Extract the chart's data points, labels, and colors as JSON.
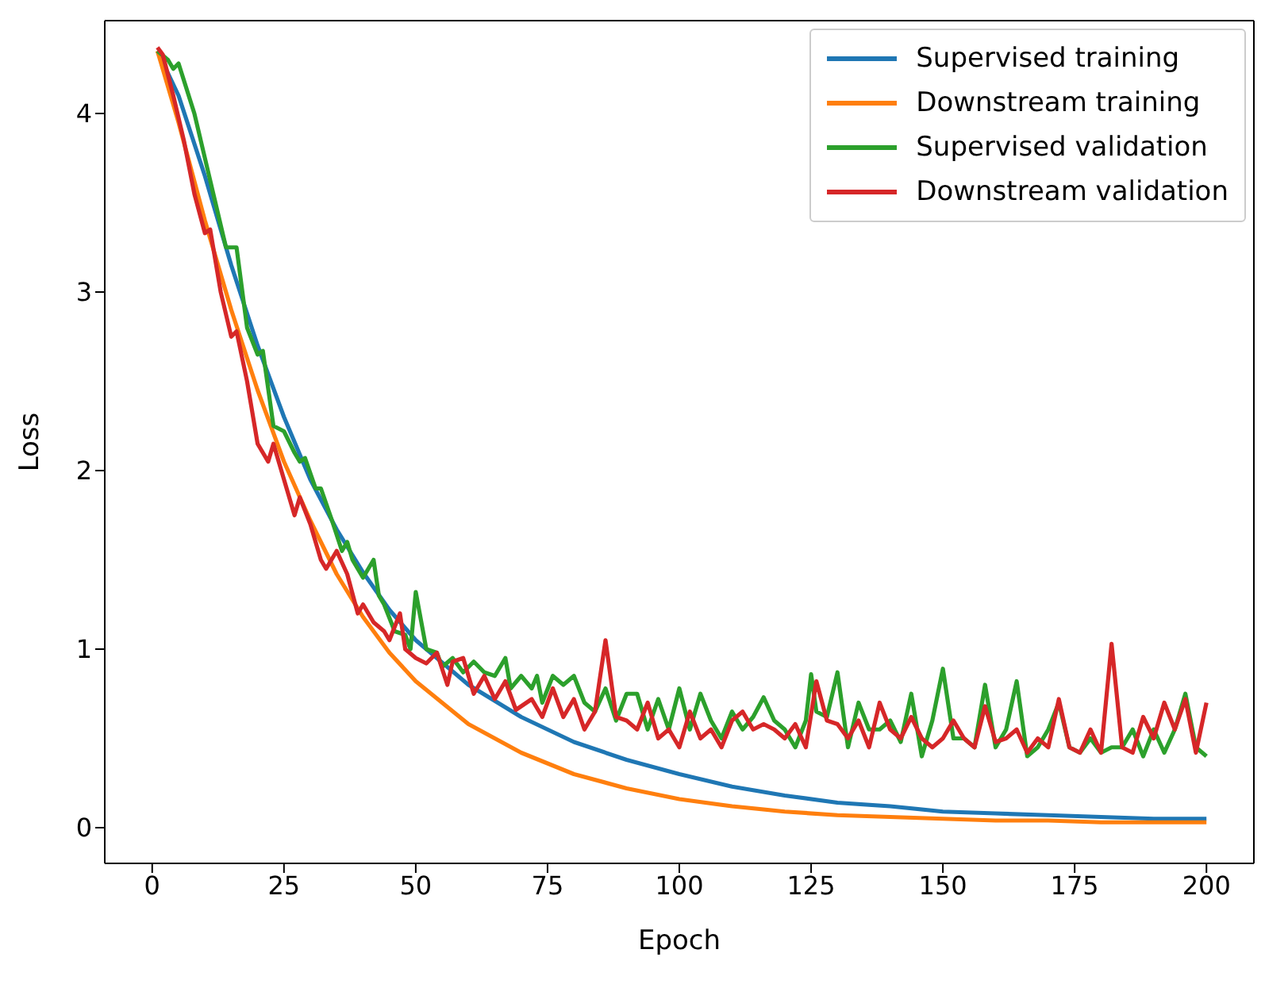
{
  "chart_data": {
    "type": "line",
    "xlabel": "Epoch",
    "ylabel": "Loss",
    "xlim": [
      -9,
      209
    ],
    "ylim": [
      -0.2,
      4.52
    ],
    "xticks": [
      0,
      25,
      50,
      75,
      100,
      125,
      150,
      175,
      200
    ],
    "yticks": [
      0,
      1,
      2,
      3,
      4
    ],
    "grid": false,
    "legend": "top right",
    "line_style": "solid",
    "marker": "none",
    "series": [
      {
        "name": "Supervised training",
        "color": "#1f77b4",
        "x": [
          1,
          5,
          10,
          15,
          20,
          25,
          30,
          35,
          40,
          45,
          50,
          60,
          70,
          80,
          90,
          100,
          110,
          120,
          130,
          140,
          150,
          160,
          170,
          180,
          190,
          200
        ],
        "values": [
          4.35,
          4.1,
          3.65,
          3.15,
          2.7,
          2.3,
          1.95,
          1.67,
          1.43,
          1.22,
          1.05,
          0.8,
          0.62,
          0.48,
          0.38,
          0.3,
          0.23,
          0.18,
          0.14,
          0.12,
          0.09,
          0.08,
          0.07,
          0.06,
          0.05,
          0.05
        ]
      },
      {
        "name": "Downstream training",
        "color": "#ff7f0e",
        "x": [
          1,
          5,
          10,
          15,
          20,
          25,
          30,
          35,
          40,
          45,
          50,
          60,
          70,
          80,
          90,
          100,
          110,
          120,
          130,
          140,
          150,
          160,
          170,
          180,
          190,
          200
        ],
        "values": [
          4.35,
          3.95,
          3.4,
          2.9,
          2.45,
          2.05,
          1.72,
          1.42,
          1.18,
          0.98,
          0.82,
          0.58,
          0.42,
          0.3,
          0.22,
          0.16,
          0.12,
          0.09,
          0.07,
          0.06,
          0.05,
          0.04,
          0.04,
          0.03,
          0.03,
          0.03
        ]
      },
      {
        "name": "Supervised validation",
        "color": "#2ca02c",
        "x": [
          1,
          3,
          4,
          5,
          8,
          10,
          12,
          14,
          16,
          18,
          20,
          21,
          23,
          25,
          27,
          28,
          29,
          31,
          32,
          34,
          36,
          37,
          38,
          40,
          42,
          43,
          44,
          46,
          48,
          49,
          50,
          52,
          54,
          55,
          57,
          59,
          61,
          63,
          65,
          67,
          68,
          70,
          72,
          73,
          74,
          76,
          78,
          80,
          82,
          84,
          86,
          88,
          90,
          92,
          94,
          96,
          98,
          100,
          102,
          104,
          106,
          108,
          110,
          112,
          114,
          116,
          118,
          120,
          122,
          124,
          125,
          126,
          128,
          130,
          132,
          134,
          136,
          138,
          140,
          142,
          144,
          146,
          148,
          150,
          152,
          154,
          156,
          158,
          160,
          162,
          164,
          166,
          168,
          170,
          172,
          174,
          176,
          178,
          180,
          182,
          184,
          186,
          188,
          190,
          192,
          194,
          196,
          198,
          200
        ],
        "values": [
          4.35,
          4.3,
          4.25,
          4.28,
          4.0,
          3.75,
          3.5,
          3.25,
          3.25,
          2.8,
          2.65,
          2.67,
          2.25,
          2.22,
          2.1,
          2.05,
          2.07,
          1.9,
          1.9,
          1.73,
          1.55,
          1.6,
          1.5,
          1.4,
          1.5,
          1.3,
          1.25,
          1.1,
          1.08,
          1.0,
          1.32,
          1.0,
          0.98,
          0.9,
          0.95,
          0.87,
          0.93,
          0.87,
          0.85,
          0.95,
          0.78,
          0.85,
          0.78,
          0.85,
          0.7,
          0.85,
          0.8,
          0.85,
          0.7,
          0.65,
          0.78,
          0.6,
          0.75,
          0.75,
          0.55,
          0.72,
          0.55,
          0.78,
          0.55,
          0.75,
          0.6,
          0.5,
          0.65,
          0.55,
          0.62,
          0.73,
          0.6,
          0.55,
          0.45,
          0.6,
          0.86,
          0.65,
          0.62,
          0.87,
          0.45,
          0.7,
          0.55,
          0.55,
          0.6,
          0.48,
          0.75,
          0.4,
          0.6,
          0.89,
          0.5,
          0.5,
          0.45,
          0.8,
          0.45,
          0.55,
          0.82,
          0.4,
          0.45,
          0.55,
          0.7,
          0.45,
          0.42,
          0.5,
          0.42,
          0.45,
          0.45,
          0.55,
          0.4,
          0.55,
          0.42,
          0.55,
          0.75,
          0.45,
          0.4
        ]
      },
      {
        "name": "Downstream validation",
        "color": "#d62728",
        "x": [
          1,
          2,
          4,
          6,
          8,
          10,
          11,
          13,
          15,
          16,
          18,
          20,
          22,
          23,
          25,
          27,
          28,
          30,
          32,
          33,
          35,
          37,
          39,
          40,
          42,
          44,
          45,
          47,
          48,
          50,
          52,
          54,
          56,
          57,
          59,
          61,
          63,
          65,
          67,
          69,
          70,
          72,
          74,
          76,
          78,
          80,
          82,
          84,
          86,
          88,
          90,
          92,
          94,
          96,
          98,
          100,
          102,
          104,
          106,
          108,
          110,
          112,
          114,
          116,
          118,
          120,
          122,
          124,
          126,
          128,
          130,
          132,
          134,
          136,
          138,
          140,
          142,
          144,
          146,
          148,
          150,
          152,
          154,
          156,
          158,
          160,
          162,
          164,
          166,
          168,
          170,
          172,
          174,
          176,
          178,
          180,
          182,
          184,
          186,
          188,
          190,
          192,
          194,
          196,
          198,
          200
        ],
        "values": [
          4.37,
          4.33,
          4.1,
          3.85,
          3.55,
          3.33,
          3.35,
          3.0,
          2.75,
          2.78,
          2.5,
          2.15,
          2.05,
          2.15,
          1.95,
          1.75,
          1.85,
          1.7,
          1.5,
          1.45,
          1.55,
          1.42,
          1.2,
          1.25,
          1.15,
          1.1,
          1.05,
          1.2,
          1.0,
          0.95,
          0.92,
          0.98,
          0.8,
          0.93,
          0.95,
          0.75,
          0.85,
          0.72,
          0.82,
          0.66,
          0.68,
          0.72,
          0.62,
          0.78,
          0.62,
          0.72,
          0.55,
          0.65,
          1.05,
          0.62,
          0.6,
          0.55,
          0.7,
          0.5,
          0.55,
          0.45,
          0.65,
          0.5,
          0.55,
          0.45,
          0.6,
          0.65,
          0.55,
          0.58,
          0.55,
          0.5,
          0.58,
          0.45,
          0.82,
          0.6,
          0.58,
          0.5,
          0.6,
          0.45,
          0.7,
          0.55,
          0.5,
          0.62,
          0.5,
          0.45,
          0.5,
          0.6,
          0.5,
          0.45,
          0.68,
          0.48,
          0.5,
          0.55,
          0.42,
          0.5,
          0.45,
          0.72,
          0.45,
          0.42,
          0.55,
          0.42,
          1.03,
          0.45,
          0.42,
          0.62,
          0.5,
          0.7,
          0.55,
          0.72,
          0.42,
          0.7
        ]
      }
    ]
  }
}
